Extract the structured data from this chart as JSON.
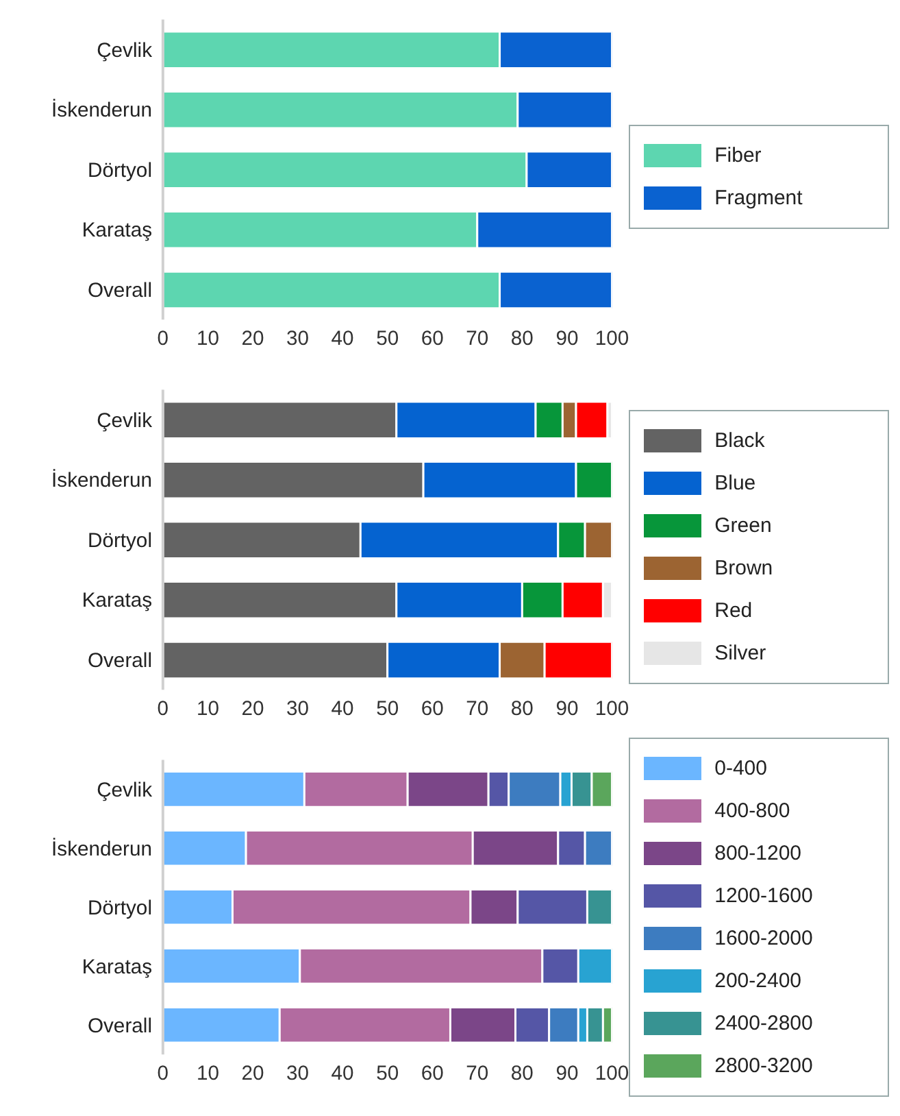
{
  "chart_data": [
    {
      "type": "bar",
      "orientation": "horizontal",
      "stacked": true,
      "categories": [
        "Çevlik",
        "İskenderun",
        "Dörtyol",
        "Karataş",
        "Overall"
      ],
      "xlim": [
        0,
        100
      ],
      "xticks": [
        0,
        10,
        20,
        30,
        40,
        50,
        60,
        70,
        80,
        90,
        100
      ],
      "grid": false,
      "legend": "right",
      "series": [
        {
          "name": "Fiber",
          "color": "#5dd6b0",
          "values": [
            75,
            79,
            81,
            70,
            75
          ]
        },
        {
          "name": "Fragment",
          "color": "#0a62d0",
          "values": [
            25,
            21,
            19,
            30,
            25
          ]
        }
      ]
    },
    {
      "type": "bar",
      "orientation": "horizontal",
      "stacked": true,
      "categories": [
        "Çevlik",
        "İskenderun",
        "Dörtyol",
        "Karataş",
        "Overall"
      ],
      "xlim": [
        0,
        100
      ],
      "xticks": [
        0,
        10,
        20,
        30,
        40,
        50,
        60,
        70,
        80,
        90,
        100
      ],
      "grid": false,
      "legend": "right",
      "series": [
        {
          "name": "Black",
          "color": "#636363",
          "values": [
            52,
            58,
            44,
            52,
            50
          ]
        },
        {
          "name": "Blue",
          "color": "#0563d0",
          "values": [
            31,
            34,
            44,
            28,
            25
          ]
        },
        {
          "name": "Green",
          "color": "#07963a",
          "values": [
            6,
            8,
            6,
            9,
            null
          ]
        },
        {
          "name": "Brown",
          "color": "#9c6432",
          "values": [
            3,
            null,
            6,
            null,
            10
          ]
        },
        {
          "name": "Red",
          "color": "#ff0000",
          "values": [
            7,
            null,
            null,
            9,
            15
          ]
        },
        {
          "name": "Silver",
          "color": "#e6e6e6",
          "values": [
            1,
            null,
            null,
            2,
            null
          ]
        }
      ]
    },
    {
      "type": "bar",
      "orientation": "horizontal",
      "stacked": true,
      "categories": [
        "Çevlik",
        "İskenderun",
        "Dörtyol",
        "Karataş",
        "Overall"
      ],
      "xlim": [
        0,
        100
      ],
      "xticks": [
        0,
        10,
        20,
        30,
        40,
        50,
        60,
        70,
        80,
        90,
        100
      ],
      "grid": false,
      "legend": "right",
      "series": [
        {
          "name": "0-400",
          "color": "#6bb6ff",
          "values": [
            31.5,
            18.5,
            15.5,
            30.5,
            26
          ]
        },
        {
          "name": "400-800",
          "color": "#b26ba0",
          "values": [
            23,
            50.5,
            53,
            54,
            38
          ]
        },
        {
          "name": "800-1200",
          "color": "#7b4688",
          "values": [
            18,
            19,
            10.5,
            null,
            14.5
          ]
        },
        {
          "name": "1200-1600",
          "color": "#5556a6",
          "values": [
            4.5,
            6,
            15.5,
            8,
            7.5
          ]
        },
        {
          "name": "1600-2000",
          "color": "#3d7cc0",
          "values": [
            11.5,
            6,
            null,
            null,
            6.5
          ]
        },
        {
          "name": "200-2400",
          "color": "#28a3d2",
          "values": [
            2.5,
            null,
            null,
            7.5,
            2
          ]
        },
        {
          "name": "2400-2800",
          "color": "#379392",
          "values": [
            4.5,
            null,
            5.5,
            null,
            3.5
          ]
        },
        {
          "name": "2800-3200",
          "color": "#5ba65c",
          "values": [
            4.5,
            null,
            null,
            null,
            2
          ]
        }
      ]
    }
  ]
}
